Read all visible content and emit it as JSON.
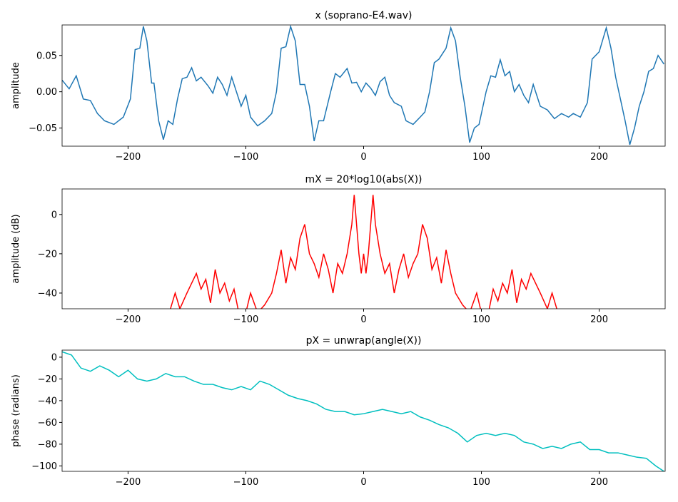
{
  "chart_data": [
    {
      "type": "line",
      "title": "x (soprano-E4.wav)",
      "ylabel": "amplitude",
      "color": "#1f77b4",
      "x": [
        -256,
        -250,
        -244,
        -238,
        -232,
        -226,
        -220,
        -212,
        -204,
        -198,
        -194,
        -190,
        -187,
        -184,
        -180,
        -178,
        -174,
        -170,
        -166,
        -162,
        -158,
        -154,
        -150,
        -146,
        -142,
        -138,
        -132,
        -128,
        -124,
        -120,
        -116,
        -112,
        -108,
        -104,
        -100,
        -96,
        -90,
        -84,
        -78,
        -74,
        -70,
        -66,
        -62,
        -58,
        -54,
        -50,
        -46,
        -42,
        -38,
        -34,
        -28,
        -24,
        -20,
        -14,
        -10,
        -6,
        -2,
        2,
        6,
        10,
        14,
        18,
        22,
        26,
        32,
        36,
        42,
        48,
        52,
        56,
        60,
        64,
        70,
        74,
        78,
        82,
        86,
        90,
        94,
        98,
        104,
        108,
        112,
        116,
        120,
        124,
        128,
        132,
        136,
        140,
        144,
        150,
        156,
        162,
        168,
        174,
        178,
        184,
        190,
        194,
        200,
        206,
        210,
        214,
        218,
        222,
        226,
        230,
        234,
        238,
        242,
        246,
        250,
        255
      ],
      "values": [
        0.016,
        0.004,
        0.022,
        -0.01,
        -0.012,
        -0.03,
        -0.04,
        -0.045,
        -0.035,
        -0.01,
        0.058,
        0.06,
        0.09,
        0.07,
        0.012,
        0.012,
        -0.04,
        -0.066,
        -0.04,
        -0.045,
        -0.01,
        0.018,
        0.02,
        0.033,
        0.015,
        0.02,
        0.008,
        -0.002,
        0.02,
        0.01,
        -0.005,
        0.02,
        0.0,
        -0.02,
        -0.005,
        -0.035,
        -0.047,
        -0.04,
        -0.03,
        0.0,
        0.06,
        0.062,
        0.09,
        0.07,
        0.01,
        0.01,
        -0.02,
        -0.068,
        -0.04,
        -0.04,
        0.0,
        0.025,
        0.02,
        0.032,
        0.012,
        0.013,
        0.0,
        0.012,
        0.005,
        -0.005,
        0.014,
        0.02,
        -0.005,
        -0.015,
        -0.02,
        -0.04,
        -0.045,
        -0.035,
        -0.028,
        0.0,
        0.04,
        0.045,
        0.06,
        0.088,
        0.07,
        0.02,
        -0.02,
        -0.07,
        -0.05,
        -0.045,
        0.0,
        0.022,
        0.02,
        0.044,
        0.022,
        0.028,
        0.0,
        0.01,
        -0.005,
        -0.015,
        0.01,
        -0.02,
        -0.025,
        -0.037,
        -0.03,
        -0.035,
        -0.03,
        -0.035,
        -0.015,
        0.045,
        0.055,
        0.088,
        0.06,
        0.02,
        -0.01,
        -0.04,
        -0.073,
        -0.05,
        -0.02,
        0.0,
        0.028,
        0.032,
        0.05,
        0.038
      ],
      "xlim": [
        -256,
        256
      ],
      "ylim": [
        -0.075,
        0.092
      ],
      "xticks": [
        {
          "value": -200,
          "label": "−200"
        },
        {
          "value": -100,
          "label": "−100"
        },
        0,
        100,
        200
      ],
      "yticks": [
        {
          "value": -0.05,
          "label": "−0.05"
        },
        {
          "value": 0,
          "label": "0.00"
        },
        {
          "value": 0.05,
          "label": "0.05"
        }
      ]
    },
    {
      "type": "line",
      "title": "mX = 20*log10(abs(X))",
      "ylabel": "amplitude (dB)",
      "color": "#ff0000",
      "x": [
        -256,
        -180,
        -165,
        -160,
        -156,
        -150,
        -146,
        -142,
        -138,
        -134,
        -130,
        -126,
        -122,
        -118,
        -114,
        -110,
        -106,
        -100,
        -96,
        -90,
        -84,
        -78,
        -74,
        -70,
        -66,
        -62,
        -58,
        -54,
        -50,
        -46,
        -42,
        -38,
        -34,
        -30,
        -26,
        -22,
        -18,
        -14,
        -10,
        -8,
        -6,
        -4,
        -2,
        0,
        2,
        4,
        6,
        8,
        10,
        14,
        18,
        22,
        26,
        30,
        34,
        38,
        42,
        46,
        50,
        54,
        58,
        62,
        66,
        70,
        74,
        78,
        84,
        90,
        96,
        100,
        106,
        110,
        114,
        118,
        122,
        126,
        130,
        134,
        138,
        142,
        146,
        150,
        156,
        160,
        165,
        255
      ],
      "values": [
        -50,
        -50,
        -50,
        -40,
        -48,
        -40,
        -35,
        -30,
        -38,
        -33,
        -45,
        -28,
        -40,
        -35,
        -44,
        -38,
        -50,
        -50,
        -40,
        -50,
        -46,
        -40,
        -30,
        -18,
        -35,
        -22,
        -28,
        -12,
        -5,
        -20,
        -25,
        -32,
        -20,
        -28,
        -40,
        -25,
        -30,
        -20,
        -5,
        10,
        -5,
        -20,
        -30,
        -20,
        -30,
        -20,
        -5,
        10,
        -5,
        -20,
        -30,
        -25,
        -40,
        -28,
        -20,
        -32,
        -25,
        -20,
        -5,
        -12,
        -28,
        -22,
        -35,
        -18,
        -30,
        -40,
        -46,
        -50,
        -40,
        -50,
        -50,
        -38,
        -44,
        -35,
        -40,
        -28,
        -45,
        -33,
        -38,
        -30,
        -35,
        -40,
        -48,
        -40,
        -50,
        -50
      ],
      "xlim": [
        -256,
        256
      ],
      "ylim": [
        -48,
        13
      ],
      "xticks": [
        {
          "value": -200,
          "label": "−200"
        },
        {
          "value": -100,
          "label": "−100"
        },
        0,
        100,
        200
      ],
      "yticks": [
        {
          "value": -40,
          "label": "−40"
        },
        {
          "value": -20,
          "label": "−20"
        },
        0
      ]
    },
    {
      "type": "line",
      "title": "pX = unwrap(angle(X))",
      "ylabel": "phase (radians)",
      "color": "#00bfbf",
      "x": [
        -256,
        -248,
        -240,
        -232,
        -224,
        -216,
        -208,
        -200,
        -192,
        -184,
        -176,
        -168,
        -160,
        -152,
        -144,
        -136,
        -128,
        -120,
        -112,
        -104,
        -96,
        -88,
        -80,
        -72,
        -64,
        -56,
        -48,
        -40,
        -32,
        -24,
        -16,
        -8,
        0,
        8,
        16,
        24,
        32,
        40,
        48,
        56,
        64,
        72,
        80,
        88,
        96,
        104,
        112,
        120,
        128,
        136,
        144,
        152,
        160,
        168,
        176,
        184,
        192,
        200,
        208,
        216,
        224,
        232,
        240,
        248,
        255
      ],
      "values": [
        5,
        2,
        -10,
        -13,
        -8,
        -12,
        -18,
        -12,
        -20,
        -22,
        -20,
        -15,
        -18,
        -18,
        -22,
        -25,
        -25,
        -28,
        -30,
        -27,
        -30,
        -22,
        -25,
        -30,
        -35,
        -38,
        -40,
        -43,
        -48,
        -50,
        -50,
        -53,
        -52,
        -50,
        -48,
        -50,
        -52,
        -50,
        -55,
        -58,
        -62,
        -65,
        -70,
        -78,
        -72,
        -70,
        -72,
        -70,
        -72,
        -78,
        -80,
        -84,
        -82,
        -84,
        -80,
        -78,
        -85,
        -85,
        -88,
        -88,
        -90,
        -92,
        -93,
        -100,
        -105
      ],
      "xlim": [
        -256,
        256
      ],
      "ylim": [
        -105,
        6.5
      ],
      "xticks": [
        {
          "value": -200,
          "label": "−200"
        },
        {
          "value": -100,
          "label": "−100"
        },
        0,
        100,
        200
      ],
      "yticks": [
        {
          "value": -100,
          "label": "−100"
        },
        {
          "value": -80,
          "label": "−80"
        },
        {
          "value": -60,
          "label": "−60"
        },
        {
          "value": -40,
          "label": "−40"
        },
        {
          "value": -20,
          "label": "−20"
        },
        0
      ]
    }
  ]
}
